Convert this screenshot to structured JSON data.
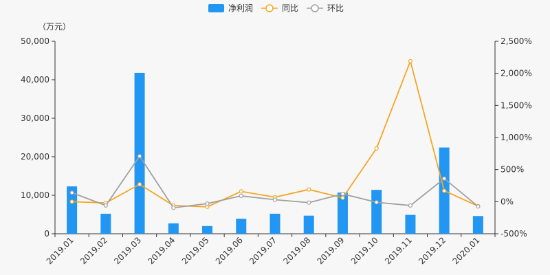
{
  "chart_data": {
    "type": "bar",
    "unit_label": "（万元）",
    "categories": [
      "2019.01",
      "2019.02",
      "2019.03",
      "2019.04",
      "2019.05",
      "2019.06",
      "2019.07",
      "2019.08",
      "2019.09",
      "2019.10",
      "2019.11",
      "2019.12",
      "2020.01"
    ],
    "series": [
      {
        "name": "净利润",
        "type": "bar",
        "axis": "left",
        "color": "#2196f3",
        "values": [
          12300,
          5200,
          41800,
          2700,
          2000,
          3900,
          5200,
          4700,
          10700,
          11400,
          4900,
          22400,
          4600
        ]
      },
      {
        "name": "同比",
        "type": "line",
        "axis": "right",
        "color": "#f5a623",
        "values": [
          0,
          -20,
          270,
          -60,
          -80,
          160,
          70,
          190,
          60,
          830,
          2190,
          170,
          -70
        ]
      },
      {
        "name": "环比",
        "type": "line",
        "axis": "right",
        "color": "#a0a0a0",
        "values": [
          140,
          -60,
          710,
          -95,
          -30,
          90,
          30,
          -15,
          120,
          -10,
          -60,
          360,
          -75
        ]
      }
    ],
    "left_axis": {
      "ylim": [
        0,
        50000
      ],
      "ticks": [
        "0",
        "10,000",
        "20,000",
        "30,000",
        "40,000",
        "50,000"
      ]
    },
    "right_axis": {
      "ylim": [
        -500,
        2500
      ],
      "ticks": [
        "-500%",
        "0%",
        "500%",
        "1,000%",
        "1,500%",
        "2,000%",
        "2,500%"
      ]
    },
    "grid": false,
    "legend_position": "top-center"
  }
}
